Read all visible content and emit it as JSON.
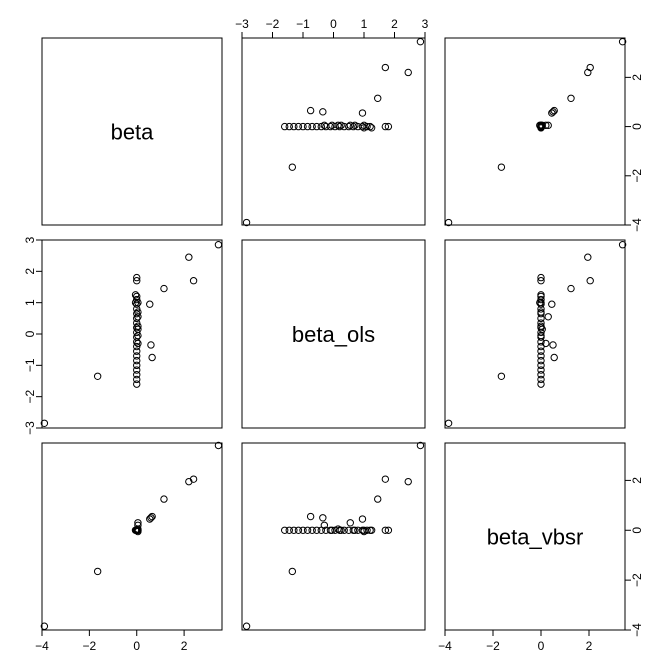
{
  "chart_data": {
    "type": "scatter",
    "variables": [
      "beta",
      "beta_ols",
      "beta_vbsr"
    ],
    "ranges": {
      "beta": [
        -4.0,
        3.6
      ],
      "beta_ols": [
        -3.0,
        3.0
      ],
      "beta_vbsr": [
        -4.0,
        3.5
      ]
    },
    "ticks": {
      "beta": [
        -4,
        -2,
        0,
        2
      ],
      "beta_ols": [
        -3,
        -2,
        -1,
        0,
        1,
        2,
        3
      ],
      "beta_vbsr": [
        -4,
        -2,
        0,
        2
      ]
    },
    "tick_labels": {
      "beta": [
        "-4",
        "-2",
        "0",
        "2"
      ],
      "beta_ols": [
        "-3",
        "-2",
        "-1",
        "0",
        "1",
        "2",
        "3"
      ],
      "beta_vbsr": [
        "-4",
        "-2",
        "0",
        "2"
      ]
    },
    "axis_texts": {
      "beta_ols_top": [
        "−3",
        "−2",
        "−1",
        "0",
        "1",
        "2",
        "3"
      ],
      "beta_ols_left": [
        "−3",
        "−2",
        "−1",
        "0",
        "1",
        "2",
        "3"
      ],
      "beta_bottom": [
        "−4",
        "−2",
        "0",
        "2"
      ],
      "beta_vbsr_bottom": [
        "−4",
        "−2",
        "0",
        "2"
      ],
      "beta_vbsr_right_top": [
        "−4",
        "−2",
        "0",
        "2"
      ],
      "beta_vbsr_right_bottom": [
        "−4",
        "−2",
        "0",
        "2"
      ]
    },
    "points": [
      {
        "beta": -3.9,
        "beta_ols": -2.85,
        "beta_vbsr": -3.85
      },
      {
        "beta": 3.45,
        "beta_ols": 2.85,
        "beta_vbsr": 3.4
      },
      {
        "beta": 2.2,
        "beta_ols": 2.45,
        "beta_vbsr": 1.95
      },
      {
        "beta": 2.4,
        "beta_ols": 1.7,
        "beta_vbsr": 2.05
      },
      {
        "beta": 1.15,
        "beta_ols": 1.45,
        "beta_vbsr": 1.25
      },
      {
        "beta": -1.65,
        "beta_ols": -1.35,
        "beta_vbsr": -1.65
      },
      {
        "beta": 0.55,
        "beta_ols": 0.95,
        "beta_vbsr": 0.45
      },
      {
        "beta": 0.6,
        "beta_ols": -0.35,
        "beta_vbsr": 0.5
      },
      {
        "beta": 0.65,
        "beta_ols": -0.75,
        "beta_vbsr": 0.55
      },
      {
        "beta": 0.0,
        "beta_ols": 1.8,
        "beta_vbsr": 0.0
      },
      {
        "beta": 0.0,
        "beta_ols": 1.7,
        "beta_vbsr": 0.0
      },
      {
        "beta": 0.0,
        "beta_ols": 1.2,
        "beta_vbsr": 0.0
      },
      {
        "beta": 0.0,
        "beta_ols": 1.1,
        "beta_vbsr": 0.0
      },
      {
        "beta": 0.0,
        "beta_ols": 0.95,
        "beta_vbsr": 0.0
      },
      {
        "beta": 0.0,
        "beta_ols": 0.8,
        "beta_vbsr": 0.0
      },
      {
        "beta": 0.0,
        "beta_ols": 0.65,
        "beta_vbsr": 0.0
      },
      {
        "beta": 0.0,
        "beta_ols": 0.5,
        "beta_vbsr": 0.0
      },
      {
        "beta": 0.0,
        "beta_ols": 0.35,
        "beta_vbsr": 0.0
      },
      {
        "beta": 0.0,
        "beta_ols": 0.2,
        "beta_vbsr": 0.0
      },
      {
        "beta": 0.0,
        "beta_ols": 0.05,
        "beta_vbsr": 0.0
      },
      {
        "beta": 0.0,
        "beta_ols": -0.1,
        "beta_vbsr": 0.0
      },
      {
        "beta": 0.0,
        "beta_ols": -0.25,
        "beta_vbsr": 0.0
      },
      {
        "beta": 0.0,
        "beta_ols": -0.4,
        "beta_vbsr": 0.0
      },
      {
        "beta": 0.0,
        "beta_ols": -0.55,
        "beta_vbsr": 0.0
      },
      {
        "beta": 0.0,
        "beta_ols": -0.7,
        "beta_vbsr": 0.0
      },
      {
        "beta": 0.0,
        "beta_ols": -0.85,
        "beta_vbsr": 0.0
      },
      {
        "beta": 0.0,
        "beta_ols": -1.0,
        "beta_vbsr": 0.0
      },
      {
        "beta": 0.0,
        "beta_ols": -1.15,
        "beta_vbsr": 0.0
      },
      {
        "beta": 0.0,
        "beta_ols": -1.3,
        "beta_vbsr": 0.0
      },
      {
        "beta": 0.0,
        "beta_ols": -1.45,
        "beta_vbsr": 0.0
      },
      {
        "beta": 0.0,
        "beta_ols": -1.6,
        "beta_vbsr": 0.0
      },
      {
        "beta": 0.05,
        "beta_ols": 0.25,
        "beta_vbsr": 0.0
      },
      {
        "beta": 0.05,
        "beta_ols": -0.05,
        "beta_vbsr": 0.0
      },
      {
        "beta": 0.05,
        "beta_ols": 0.55,
        "beta_vbsr": 0.3
      },
      {
        "beta": 0.05,
        "beta_ols": -0.3,
        "beta_vbsr": 0.2
      },
      {
        "beta": 0.05,
        "beta_ols": 1.0,
        "beta_vbsr": -0.05
      },
      {
        "beta": 0.05,
        "beta_ols": 0.15,
        "beta_vbsr": 0.05
      },
      {
        "beta": 0.05,
        "beta_ols": 0.7,
        "beta_vbsr": 0.0
      },
      {
        "beta": -0.05,
        "beta_ols": 1.0,
        "beta_vbsr": 0.0
      },
      {
        "beta": -0.05,
        "beta_ols": 1.25,
        "beta_vbsr": 0.0
      }
    ]
  }
}
